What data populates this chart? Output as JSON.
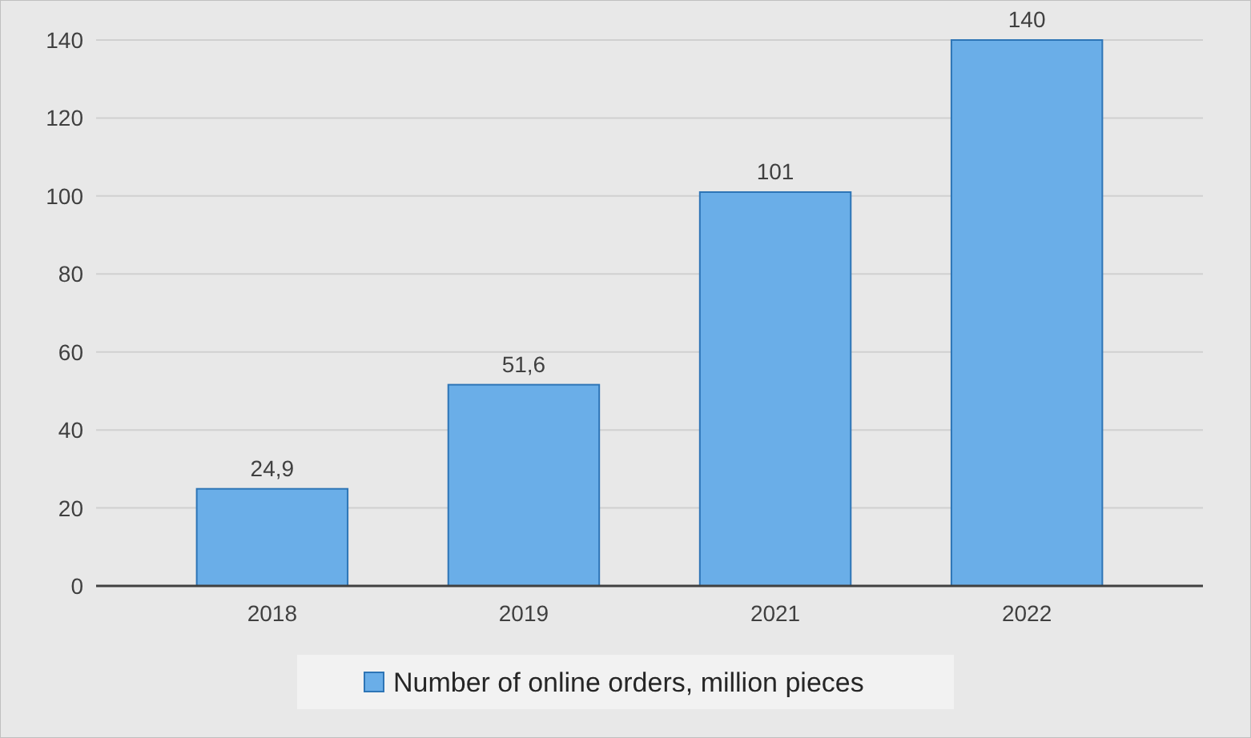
{
  "chart_data": {
    "type": "bar",
    "categories": [
      "2018",
      "2019",
      "2021",
      "2022"
    ],
    "series": [
      {
        "name": "Number of online orders, million pieces",
        "color": "#6aaee8",
        "values": [
          24.9,
          51.6,
          101,
          140
        ]
      }
    ],
    "value_labels": [
      "24,9",
      "51,6",
      "101",
      "140"
    ],
    "ylim": [
      0,
      140
    ],
    "yticks": [
      0,
      20,
      40,
      60,
      80,
      100,
      120,
      140
    ],
    "grid": "y",
    "legend": "bottom"
  }
}
